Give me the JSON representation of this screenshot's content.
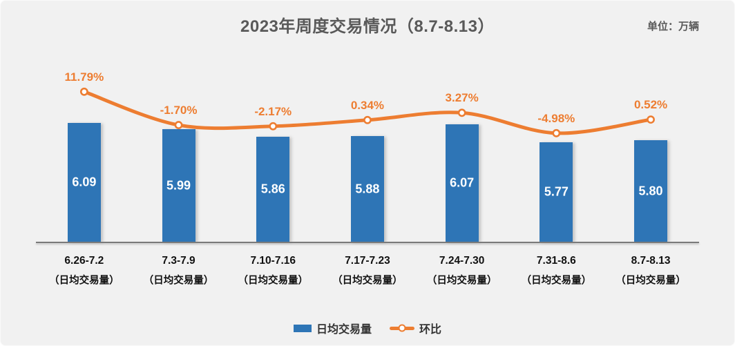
{
  "title": "2023年周度交易情况（8.7-8.13）",
  "unit_note": "单位：万辆",
  "legend": {
    "bar_label": "日均交易量",
    "line_label": "环比"
  },
  "colors": {
    "background": "#f1f1f1",
    "bar": "#2e75b6",
    "line": "#ed7d31",
    "pct_label": "#ed7d31",
    "title_text": "#595959",
    "axis_line": "#7a7a7a",
    "bar_value_text": "#ffffff",
    "x_label_text": "#111111"
  },
  "chart_data": {
    "type": "bar+line",
    "title": "2023年周度交易情况（8.7-8.13）",
    "unit": "万辆",
    "categories": [
      "6.26-7.2",
      "7.3-7.9",
      "7.10-7.16",
      "7.17-7.23",
      "7.24-7.30",
      "7.31-8.6",
      "8.7-8.13"
    ],
    "category_sublabel": "（日均交易量）",
    "series": [
      {
        "name": "日均交易量",
        "type": "bar",
        "values": [
          6.09,
          5.99,
          5.86,
          5.88,
          6.07,
          5.77,
          5.8
        ],
        "labels": [
          "6.09",
          "5.99",
          "5.86",
          "5.88",
          "6.07",
          "5.77",
          "5.80"
        ],
        "label_position": "inside-center"
      },
      {
        "name": "环比",
        "type": "line",
        "smooth": true,
        "values": [
          11.79,
          -1.7,
          -2.17,
          0.34,
          3.27,
          -4.98,
          0.52
        ],
        "labels": [
          "11.79%",
          "-1.70%",
          "-2.17%",
          "0.34%",
          "3.27%",
          "-4.98%",
          "0.52%"
        ],
        "label_position": "above"
      }
    ],
    "legend_position": "bottom",
    "grid": false,
    "value_axis_visible": false
  }
}
